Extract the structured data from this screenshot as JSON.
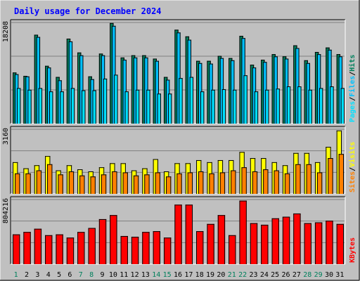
{
  "colors": {
    "background": "#c0c0c0",
    "grid": "#7f7f7f",
    "hits": "#00805c",
    "files": "#00c0ff",
    "pages": "#00e0ff",
    "visits": "#ffff00",
    "sites": "#ff8000",
    "kbytes": "#ff0000",
    "title": "#0000ff",
    "day_normal": "#000000",
    "day_weekend": "#00805c"
  },
  "chart_data": [
    {
      "type": "bar",
      "title": "Daily usage for December 2024",
      "xlabel": "",
      "ylabel_max": "18208",
      "ylim": [
        0,
        18208
      ],
      "categories": [
        "1",
        "2",
        "3",
        "4",
        "5",
        "6",
        "7",
        "8",
        "9",
        "10",
        "11",
        "12",
        "13",
        "14",
        "15",
        "16",
        "17",
        "18",
        "19",
        "20",
        "21",
        "22",
        "23",
        "24",
        "25",
        "26",
        "27",
        "28",
        "29",
        "30",
        "31"
      ],
      "weekend_days": [
        "1",
        "7",
        "8",
        "14",
        "15",
        "21",
        "22",
        "28",
        "29"
      ],
      "legend": [
        "Pages",
        "/",
        "Files",
        "/",
        "Hits"
      ],
      "series": [
        {
          "name": "Hits",
          "values": [
            9200,
            8600,
            16000,
            10400,
            8400,
            15300,
            12800,
            8500,
            12600,
            18100,
            11900,
            12300,
            12300,
            11700,
            8400,
            16900,
            15700,
            11300,
            11300,
            12200,
            11800,
            15800,
            10600,
            11500,
            12500,
            12100,
            14100,
            11400,
            12900,
            13700,
            12500
          ]
        },
        {
          "name": "Files",
          "values": [
            8900,
            8500,
            15600,
            10100,
            7800,
            14800,
            12300,
            8000,
            12300,
            17600,
            11500,
            11900,
            11900,
            11300,
            7900,
            16400,
            15100,
            10900,
            10800,
            11800,
            11400,
            15400,
            10100,
            11100,
            12100,
            11700,
            13600,
            10900,
            12500,
            13300,
            12100
          ]
        },
        {
          "name": "Pages",
          "values": [
            6400,
            6100,
            6400,
            5800,
            5800,
            6400,
            6000,
            6000,
            8100,
            8800,
            5800,
            6100,
            6100,
            5400,
            5400,
            8200,
            8400,
            5800,
            6100,
            6200,
            6100,
            8700,
            5800,
            6100,
            6300,
            6700,
            6700,
            6100,
            6400,
            6700,
            6400
          ]
        }
      ]
    },
    {
      "type": "bar",
      "ylabel_max": "3160",
      "ylim": [
        0,
        3160
      ],
      "categories": [
        "1",
        "2",
        "3",
        "4",
        "5",
        "6",
        "7",
        "8",
        "9",
        "10",
        "11",
        "12",
        "13",
        "14",
        "15",
        "16",
        "17",
        "18",
        "19",
        "20",
        "21",
        "22",
        "23",
        "24",
        "25",
        "26",
        "27",
        "28",
        "29",
        "30",
        "31"
      ],
      "legend": [
        "Sites",
        "/",
        "Visits"
      ],
      "series": [
        {
          "name": "Visits",
          "values": [
            1550,
            1250,
            1400,
            1850,
            1150,
            1400,
            1200,
            1100,
            1300,
            1500,
            1500,
            1150,
            1250,
            1700,
            1100,
            1500,
            1500,
            1650,
            1550,
            1650,
            1650,
            2050,
            1750,
            1750,
            1550,
            1400,
            2000,
            2000,
            1550,
            2300,
            3100
          ]
        },
        {
          "name": "Sites",
          "values": [
            1000,
            1000,
            1150,
            1450,
            950,
            1100,
            900,
            850,
            950,
            1100,
            1050,
            900,
            950,
            1050,
            850,
            1000,
            1050,
            1100,
            1000,
            1050,
            1150,
            1300,
            1100,
            1200,
            1150,
            1000,
            1450,
            1450,
            1050,
            1750,
            1950
          ]
        }
      ]
    },
    {
      "type": "bar",
      "ylabel_max": "804216",
      "ylim": [
        0,
        804216
      ],
      "categories": [
        "1",
        "2",
        "3",
        "4",
        "5",
        "6",
        "7",
        "8",
        "9",
        "10",
        "11",
        "12",
        "13",
        "14",
        "15",
        "16",
        "17",
        "18",
        "19",
        "20",
        "21",
        "22",
        "23",
        "24",
        "25",
        "26",
        "27",
        "28",
        "29",
        "30",
        "31"
      ],
      "legend": [
        "KBytes"
      ],
      "series": [
        {
          "name": "KBytes",
          "values": [
            370000,
            400000,
            440000,
            360000,
            370000,
            330000,
            400000,
            450000,
            560000,
            610000,
            350000,
            340000,
            400000,
            410000,
            330000,
            740000,
            740000,
            410000,
            500000,
            610000,
            360000,
            790000,
            510000,
            490000,
            570000,
            590000,
            630000,
            510000,
            520000,
            540000,
            500000
          ]
        }
      ]
    }
  ]
}
